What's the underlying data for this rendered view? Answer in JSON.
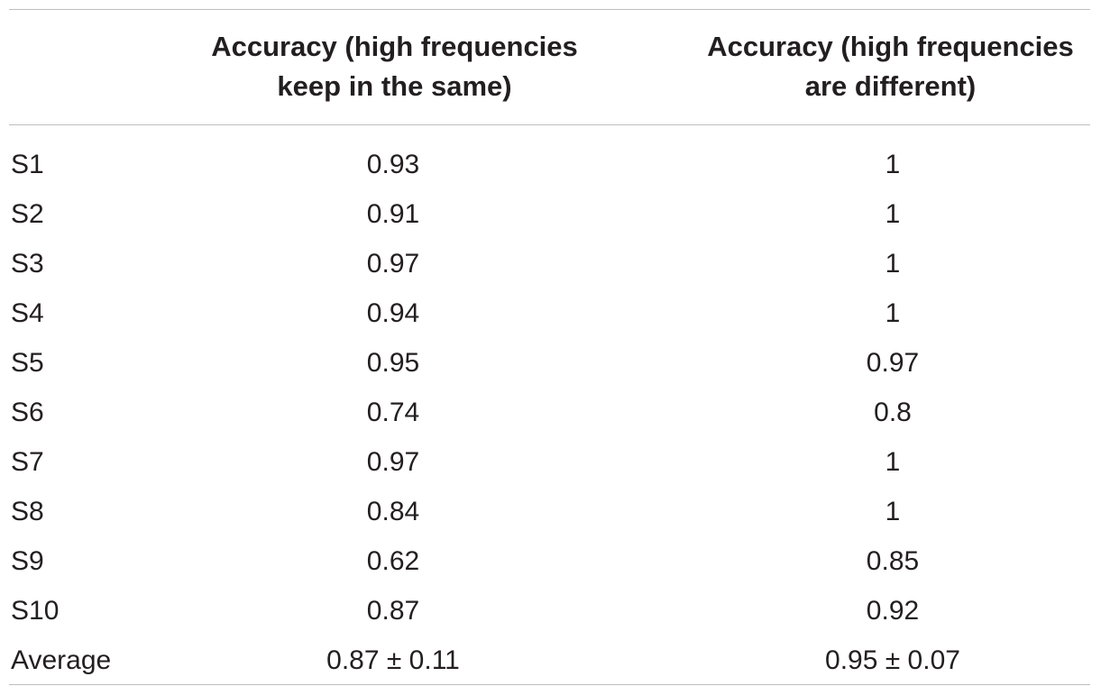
{
  "header": {
    "col1_line1": "Accuracy (high frequencies",
    "col1_line2": "keep in the same)",
    "col2_line1": "Accuracy (high frequencies",
    "col2_line2": "are different)"
  },
  "rows": [
    {
      "label": "S1",
      "same": "0.93",
      "different": "1"
    },
    {
      "label": "S2",
      "same": "0.91",
      "different": "1"
    },
    {
      "label": "S3",
      "same": "0.97",
      "different": "1"
    },
    {
      "label": "S4",
      "same": "0.94",
      "different": "1"
    },
    {
      "label": "S5",
      "same": "0.95",
      "different": "0.97"
    },
    {
      "label": "S6",
      "same": "0.74",
      "different": "0.8"
    },
    {
      "label": "S7",
      "same": "0.97",
      "different": "1"
    },
    {
      "label": "S8",
      "same": "0.84",
      "different": "1"
    },
    {
      "label": "S9",
      "same": "0.62",
      "different": "0.85"
    },
    {
      "label": "S10",
      "same": "0.87",
      "different": "0.92"
    },
    {
      "label": "Average",
      "same": "0.87 ± 0.11",
      "different": "0.95 ± 0.07"
    }
  ]
}
